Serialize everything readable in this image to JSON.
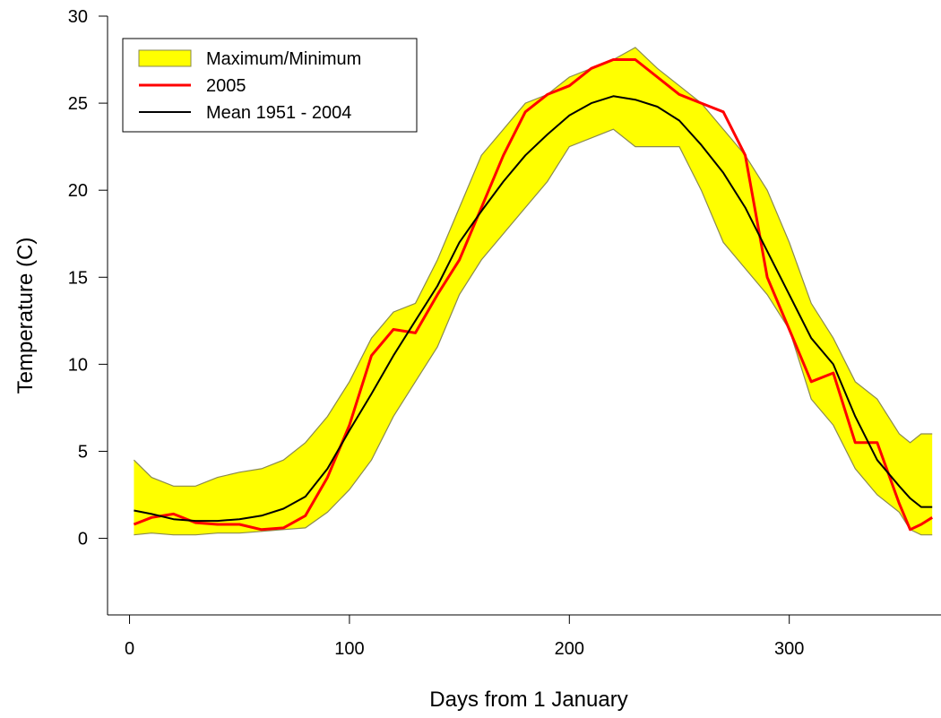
{
  "chart_data": {
    "type": "line",
    "xlabel": "Days from 1 January",
    "ylabel": "Temperature (C)",
    "x": [
      2,
      10,
      20,
      30,
      40,
      50,
      60,
      70,
      80,
      90,
      100,
      110,
      120,
      130,
      140,
      150,
      160,
      170,
      180,
      190,
      200,
      210,
      220,
      230,
      240,
      250,
      260,
      270,
      280,
      290,
      300,
      310,
      320,
      330,
      340,
      350,
      355,
      360,
      365
    ],
    "series": [
      {
        "name": "Maximum/Minimum",
        "kind": "band",
        "color": "#ffff00",
        "edge_color": "#8a8a50",
        "upper": [
          4.5,
          3.5,
          3.0,
          3.0,
          3.5,
          3.8,
          4.0,
          4.5,
          5.5,
          7.0,
          9.0,
          11.5,
          13.0,
          13.5,
          16.0,
          19.0,
          22.0,
          23.5,
          25.0,
          25.5,
          26.5,
          27.0,
          27.5,
          28.2,
          27.0,
          26.0,
          25.0,
          23.5,
          22.0,
          20.0,
          17.0,
          13.5,
          11.5,
          9.0,
          8.0,
          6.0,
          5.5,
          6.0,
          6.0
        ],
        "lower": [
          0.2,
          0.3,
          0.2,
          0.2,
          0.3,
          0.3,
          0.4,
          0.5,
          0.6,
          1.5,
          2.8,
          4.5,
          7.0,
          9.0,
          11.0,
          14.0,
          16.0,
          17.5,
          19.0,
          20.5,
          22.5,
          23.0,
          23.5,
          22.5,
          22.5,
          22.5,
          20.0,
          17.0,
          15.5,
          14.0,
          12.0,
          8.0,
          6.5,
          4.0,
          2.5,
          1.5,
          0.5,
          0.2,
          0.2
        ]
      },
      {
        "name": "2005",
        "kind": "line",
        "color": "#ff0000",
        "width": 3,
        "values": [
          0.8,
          1.2,
          1.4,
          0.9,
          0.8,
          0.8,
          0.5,
          0.6,
          1.3,
          3.5,
          6.5,
          10.5,
          12.0,
          11.8,
          14.0,
          16.0,
          19.0,
          22.0,
          24.5,
          25.5,
          26.0,
          27.0,
          27.5,
          27.5,
          26.5,
          25.5,
          25.0,
          24.5,
          22.0,
          15.0,
          12.0,
          9.0,
          9.5,
          5.5,
          5.5,
          2.0,
          0.5,
          0.8,
          1.2
        ]
      },
      {
        "name": "Mean 1951 - 2004",
        "kind": "line",
        "color": "#000000",
        "width": 2,
        "values": [
          1.6,
          1.4,
          1.1,
          1.0,
          1.0,
          1.1,
          1.3,
          1.7,
          2.4,
          4.0,
          6.2,
          8.3,
          10.5,
          12.5,
          14.5,
          17.0,
          18.8,
          20.5,
          22.0,
          23.2,
          24.3,
          25.0,
          25.4,
          25.2,
          24.8,
          24.0,
          22.6,
          21.0,
          19.0,
          16.5,
          14.0,
          11.5,
          10.0,
          7.0,
          4.5,
          3.0,
          2.3,
          1.8,
          1.8
        ]
      }
    ],
    "xlim": [
      -10,
      369
    ],
    "ylim": [
      -4.4,
      30
    ],
    "xticks": [
      0,
      100,
      200,
      300
    ],
    "yticks": [
      0,
      5,
      10,
      15,
      20,
      25,
      30
    ],
    "legend": "upper left"
  }
}
